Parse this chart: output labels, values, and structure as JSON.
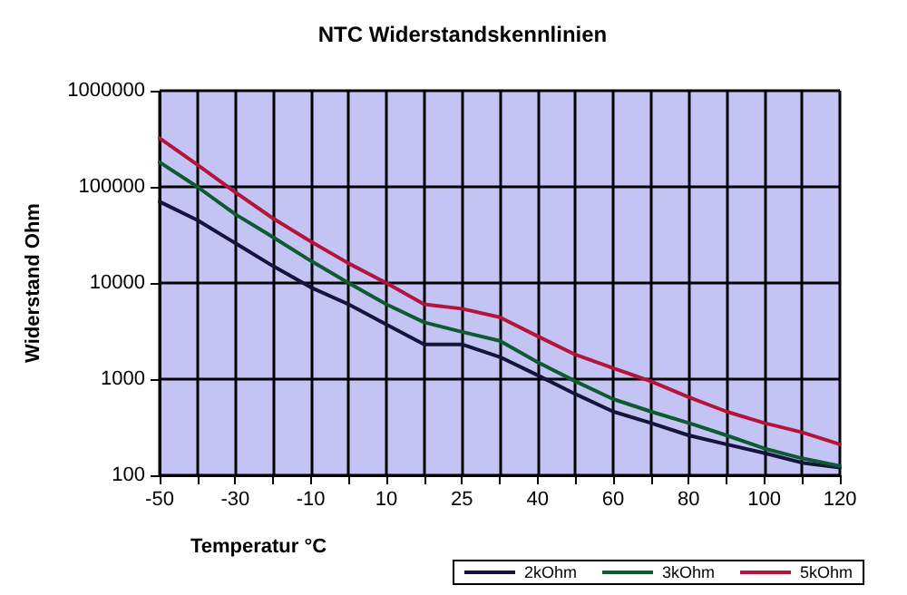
{
  "chart_data": {
    "type": "line",
    "title": "NTC Widerstandskennlinien",
    "xlabel": "Temperatur °C",
    "ylabel": "Widerstand Ohm",
    "categories": [
      "-50",
      null,
      "-30",
      null,
      "-10",
      null,
      "10",
      null,
      "25",
      null,
      "40",
      null,
      "60",
      null,
      "80",
      null,
      "100",
      null,
      "120"
    ],
    "series": [
      {
        "name": "2kOhm",
        "color": "#14143c",
        "values": [
          70000,
          45000,
          26000,
          15000,
          9000,
          6000,
          3700,
          2300,
          2300,
          1700,
          1100,
          700,
          460,
          350,
          260,
          210,
          170,
          135,
          120
        ]
      },
      {
        "name": "3kOhm",
        "color": "#0f5a32",
        "values": [
          180000,
          100000,
          52000,
          30000,
          17000,
          10000,
          6000,
          3900,
          3100,
          2500,
          1500,
          950,
          620,
          460,
          350,
          260,
          190,
          150,
          125
        ]
      },
      {
        "name": "5kOhm",
        "color": "#b4143c",
        "values": [
          320000,
          170000,
          88000,
          47000,
          27000,
          16000,
          10000,
          6000,
          5400,
          4400,
          2800,
          1800,
          1300,
          950,
          650,
          460,
          350,
          280,
          210
        ]
      }
    ],
    "log": true,
    "ylim": [
      100,
      1000000
    ],
    "yticks": [
      100,
      1000,
      10000,
      100000,
      1000000
    ],
    "grid": true,
    "legend": "bottom",
    "marker": "none",
    "line_style": "solid"
  }
}
